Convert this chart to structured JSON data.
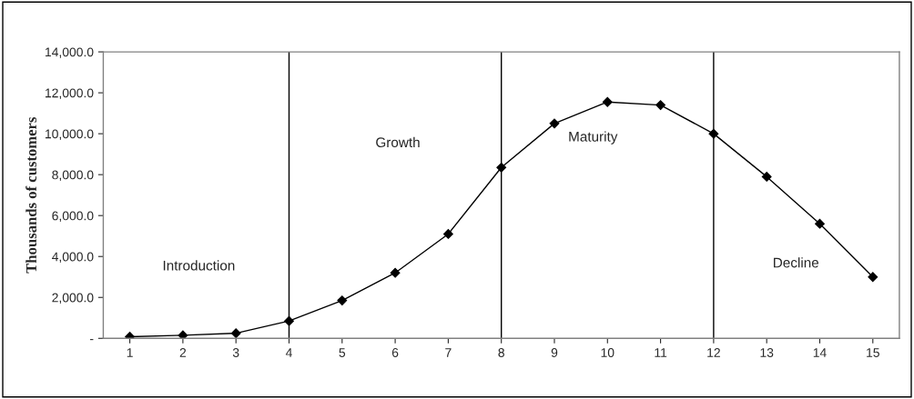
{
  "chart_data": {
    "type": "line",
    "ylabel": "Thousands of customers",
    "x": [
      1,
      2,
      3,
      4,
      5,
      6,
      7,
      8,
      9,
      10,
      11,
      12,
      13,
      14,
      15
    ],
    "series": [
      {
        "color": "#000000",
        "values": [
          80,
          150,
          250,
          850,
          1850,
          3200,
          5100,
          8350,
          10500,
          11550,
          11400,
          10000,
          7900,
          5600,
          3000
        ]
      }
    ],
    "xlim": [
      0.5,
      15.5
    ],
    "xticks": [
      1,
      2,
      3,
      4,
      5,
      6,
      7,
      8,
      9,
      10,
      11,
      12,
      13,
      14,
      15
    ],
    "ylim": [
      0,
      14000
    ],
    "yticks": [
      {
        "value": 0,
        "label": "-"
      },
      {
        "value": 2000,
        "label": "2,000.0"
      },
      {
        "value": 4000,
        "label": "4,000.0"
      },
      {
        "value": 6000,
        "label": "6,000.0"
      },
      {
        "value": 8000,
        "label": "8,000.0"
      },
      {
        "value": 10000,
        "label": "10,000.0"
      },
      {
        "value": 12000,
        "label": "12,000.0"
      },
      {
        "value": 14000,
        "label": "14,000.0"
      }
    ],
    "ref_lines": [
      {
        "axis": "x",
        "value": 4,
        "color": "#000000"
      },
      {
        "axis": "x",
        "value": 8,
        "color": "#000000"
      },
      {
        "axis": "x",
        "value": 12,
        "color": "#000000"
      }
    ],
    "annotations": [
      "Introduction",
      "Growth",
      "Maturity",
      "Decline"
    ],
    "marker": "diamond",
    "line_style": "solid",
    "grid": false,
    "legend": false
  }
}
